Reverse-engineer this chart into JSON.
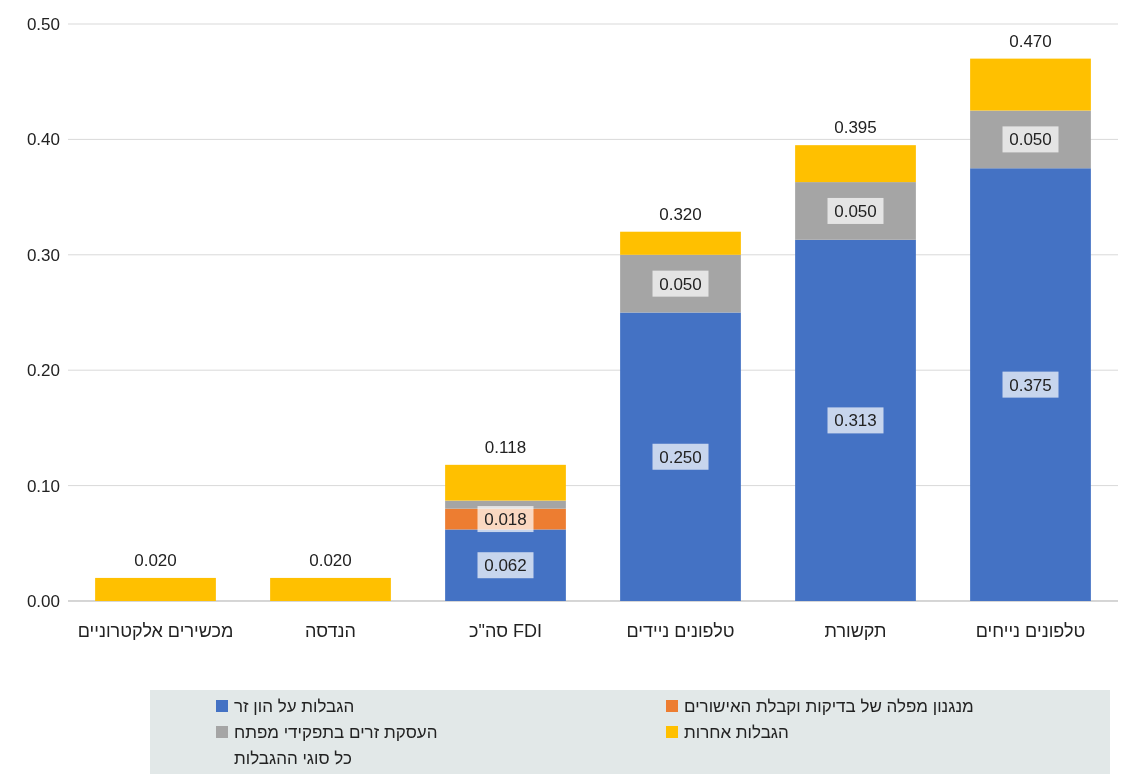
{
  "chart_data": {
    "type": "bar",
    "stacked": true,
    "categories": [
      "מכשירים אלקטרוניים",
      "הנדסה",
      "סה\"כ FDI",
      "טלפונים ניידים",
      "תקשורת",
      "טלפונים נייחים"
    ],
    "series": [
      {
        "name": "הגבלות על הון זר",
        "color": "#4472c4",
        "values": [
          0,
          0,
          0.062,
          0.25,
          0.313,
          0.375
        ],
        "value_labels": [
          null,
          null,
          "0.062",
          "0.250",
          "0.313",
          "0.375"
        ]
      },
      {
        "name": "מנגנון מפלה של בדיקות וקבלת האישורים",
        "color": "#ed7d31",
        "values": [
          0,
          0,
          0.018,
          0,
          0,
          0
        ],
        "value_labels": [
          null,
          null,
          "0.018",
          null,
          null,
          null
        ]
      },
      {
        "name": "העסקת זרים בתפקידי מפתח",
        "color": "#a5a5a5",
        "values": [
          0,
          0,
          0.007,
          0.05,
          0.05,
          0.05
        ],
        "value_labels": [
          null,
          null,
          null,
          "0.050",
          "0.050",
          "0.050"
        ]
      },
      {
        "name": "הגבלות אחרות",
        "color": "#ffc000",
        "values": [
          0.02,
          0.02,
          0.031,
          0.02,
          0.032,
          0.045
        ]
      }
    ],
    "totals": [
      "0.020",
      "0.020",
      "0.118",
      "0.320",
      "0.395",
      "0.470"
    ],
    "annotations": [
      "כל סוגי ההגבלות"
    ],
    "ylim": [
      0,
      0.5
    ],
    "yticks": [
      {
        "value": 0,
        "label": "0.00"
      },
      {
        "value": 0.1,
        "label": "0.10"
      },
      {
        "value": 0.2,
        "label": "0.20"
      },
      {
        "value": 0.3,
        "label": "0.30"
      },
      {
        "value": 0.4,
        "label": "0.40"
      },
      {
        "value": 0.5,
        "label": "0.50"
      }
    ],
    "grid": "y",
    "legend": "bottom"
  }
}
